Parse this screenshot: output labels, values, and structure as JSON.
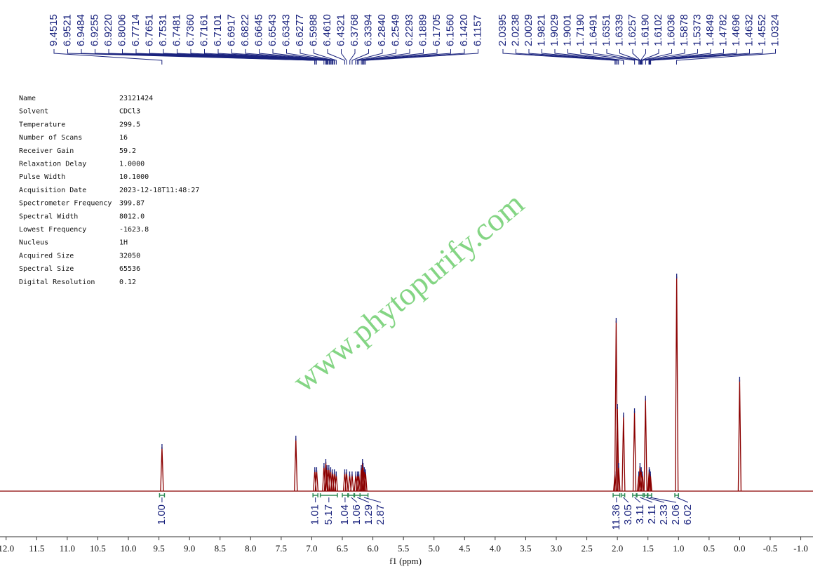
{
  "chart_data": {
    "type": "nmr",
    "watermark": "www.phytopurify.com",
    "xlabel": "f1 (ppm)",
    "xlim": [
      12.1,
      -1.2
    ],
    "ylim": [
      0,
      105
    ],
    "color": "#8b0000",
    "xticks": [
      {
        "value": 12,
        "label": "12.0"
      },
      11.5,
      {
        "value": 11,
        "label": "11.0"
      },
      10.5,
      {
        "value": 10,
        "label": "10.0"
      },
      9.5,
      {
        "value": 9,
        "label": "9.0"
      },
      8.5,
      {
        "value": 8,
        "label": "8.0"
      },
      7.5,
      {
        "value": 7,
        "label": "7.0"
      },
      6.5,
      {
        "value": 6,
        "label": "6.0"
      },
      5.5,
      {
        "value": 5,
        "label": "5.0"
      },
      4.5,
      {
        "value": 4,
        "label": "4.0"
      },
      3.5,
      {
        "value": 3,
        "label": "3.0"
      },
      2.5,
      {
        "value": 2,
        "label": "2.0"
      },
      1.5,
      {
        "value": 1,
        "label": "1.0"
      },
      0.5,
      {
        "value": 0,
        "label": "0.0"
      },
      -0.5,
      {
        "value": -1,
        "label": "-1.0"
      }
    ],
    "parameters": [
      [
        "Name",
        23121424
      ],
      [
        "Solvent",
        "CDCl3"
      ],
      [
        "Temperature",
        299.5
      ],
      [
        "Number of Scans",
        16
      ],
      [
        "Receiver Gain",
        59.2
      ],
      [
        "Relaxation Delay",
        "1.0000"
      ],
      [
        "Pulse Width",
        "10.1000"
      ],
      [
        "Acquisition Date",
        "2023-12-18T11:48:27"
      ],
      [
        "Spectrometer Frequency",
        399.87
      ],
      [
        "Spectral Width",
        "8012.0"
      ],
      [
        "Lowest Frequency",
        -1623.8
      ],
      [
        "Nucleus",
        "1H"
      ],
      [
        "Acquired Size",
        32050
      ],
      [
        "Spectral Size",
        65536
      ],
      [
        "Digital Resolution",
        0.12
      ]
    ],
    "peak_labels": [
      [
        9.4515,
        6.9521,
        6.9484,
        6.9255,
        {
          "value": 6.922,
          "label": "6.9220"
        },
        6.8006,
        6.7714,
        6.7651,
        6.7531,
        6.7481,
        {
          "value": 6.736,
          "label": "6.7360"
        },
        6.7161,
        6.7101,
        6.6917,
        6.6822,
        6.6645,
        6.6543,
        6.6343,
        6.6277,
        6.5988,
        {
          "value": 6.461,
          "label": "6.4610"
        },
        6.4321,
        6.3768,
        6.3394,
        {
          "value": 6.284,
          "label": "6.2840"
        },
        6.2549,
        6.2293,
        6.1889,
        6.1705,
        {
          "value": 6.156,
          "label": "6.1560"
        },
        {
          "value": 6.142,
          "label": "6.1420"
        },
        6.1157
      ],
      [
        2.0395,
        2.0238,
        2.0029,
        1.9821,
        1.9029,
        1.9001,
        {
          "value": 1.719,
          "label": "1.7190"
        },
        1.6491,
        1.6351,
        1.6339,
        1.6257,
        {
          "value": 1.619,
          "label": "1.6190"
        },
        1.6102,
        1.6036,
        1.5878,
        1.5373,
        1.4849,
        1.4782,
        1.4696,
        1.4632,
        1.4552,
        1.0324
      ]
    ],
    "spectrum": {
      "x": [
        9.45,
        7.26,
        6.95,
        6.92,
        6.8,
        6.77,
        6.75,
        6.72,
        6.69,
        6.66,
        6.63,
        6.6,
        6.46,
        6.43,
        6.38,
        6.34,
        6.28,
        6.25,
        6.23,
        6.19,
        6.17,
        6.16,
        6.14,
        6.12,
        2.04,
        2.02,
        2.0,
        1.98,
        1.9,
        1.72,
        1.65,
        1.63,
        1.61,
        1.59,
        1.54,
        1.48,
        1.47,
        1.46,
        1.03,
        0.0
      ],
      "y": [
        21,
        25,
        10,
        10,
        12,
        14,
        11,
        11,
        10,
        9,
        9,
        8,
        9,
        9,
        8,
        8,
        8,
        8,
        8,
        11,
        14,
        12,
        10,
        9,
        8,
        81,
        40,
        12,
        36,
        38,
        8,
        12,
        10,
        8,
        44,
        10,
        9,
        8,
        102,
        53
      ]
    },
    "integrals": {
      "ranges": [
        [
          9.49,
          9.41
        ],
        [
          6.98,
          6.9
        ],
        [
          6.86,
          6.58
        ],
        [
          6.5,
          6.41
        ],
        [
          6.4,
          6.31
        ],
        [
          6.3,
          6.21
        ],
        [
          6.21,
          6.08
        ],
        [
          2.07,
          1.96
        ],
        [
          1.93,
          1.88
        ],
        [
          1.75,
          1.69
        ],
        [
          1.68,
          1.58
        ],
        [
          1.56,
          1.51
        ],
        [
          1.5,
          1.44
        ],
        [
          1.06,
          1.0
        ]
      ],
      "values": [
        1,
        1.01,
        5.17,
        1.04,
        1.06,
        1.29,
        2.87,
        11.36,
        3.05,
        3.11,
        2.11,
        2.33,
        2.06,
        6.02
      ],
      "value_labels": [
        "1.00",
        "1.01",
        "5.17",
        "1.04",
        "1.06",
        "1.29",
        "2.87",
        "11.36",
        "3.05",
        "3.11",
        "2.11",
        "2.33",
        "2.06",
        "6.02"
      ]
    }
  }
}
